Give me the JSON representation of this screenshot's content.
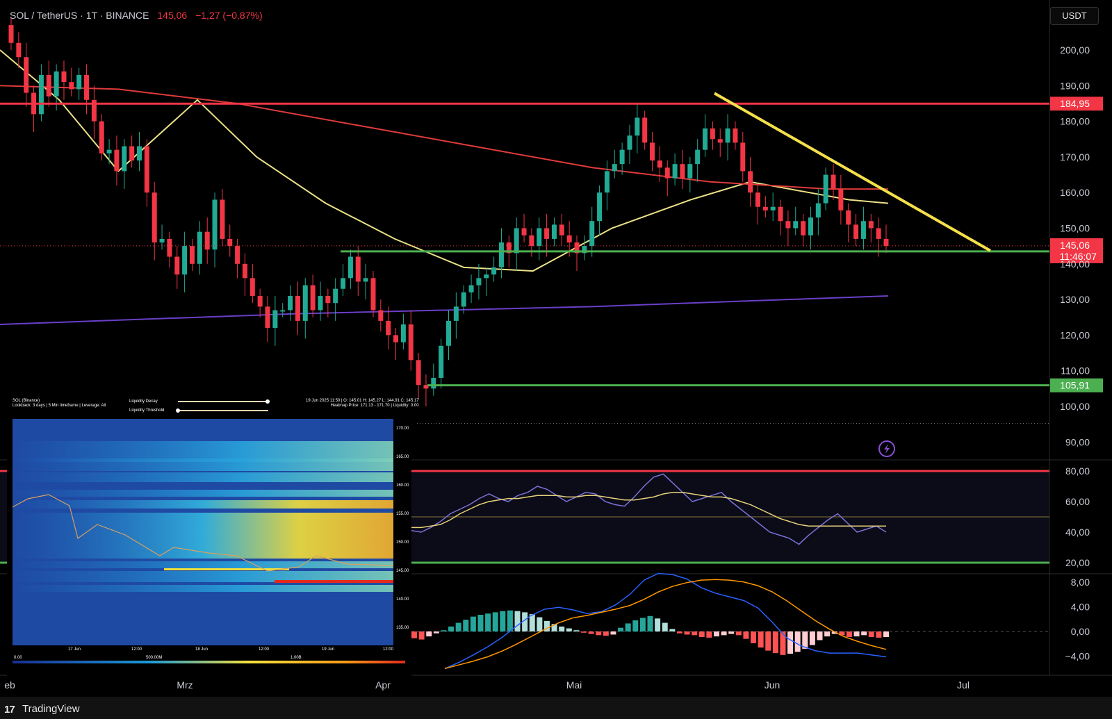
{
  "header": {
    "symbol": "SOL / TetherUS · 1T · BINANCE",
    "last": "145,06",
    "change": "−1,27 (−0,87%)"
  },
  "unit_button": "USDT",
  "footer": {
    "brand": "TradingView",
    "logo_glyph": "17"
  },
  "colors": {
    "up": "#22ab94",
    "down": "#f23645",
    "resistance": "#f23645",
    "support": "#4caf50",
    "trendline": "#f5e04a",
    "ma_slow": "#e03b3b",
    "ma_fast": "#ece287",
    "ma_long": "#6a3fc8"
  },
  "chart_data": {
    "type": "candlestick",
    "ylim": [
      85,
      205
    ],
    "y_ticks": [
      "200,00",
      "190,00",
      "180,00",
      "170,00",
      "160,00",
      "150,00",
      "140,00",
      "130,00",
      "120,00",
      "110,00",
      "100,00",
      "90,00"
    ],
    "x_labels": [
      "eb",
      "Mrz",
      "Apr",
      "Mai",
      "Jun",
      "Jul"
    ],
    "price_labels": {
      "resistance": "184,95",
      "last": "145,06",
      "countdown": "11:46:07",
      "support": "105,91"
    },
    "levels": {
      "resistance": 184.95,
      "support_high": 143.5,
      "support_low": 105.91,
      "last": 145.06,
      "low_dotted": 95.2
    },
    "trendline": {
      "from_price": 187.5,
      "to_price": 144.1
    },
    "candles_close": [
      202,
      198,
      188,
      182,
      193,
      187,
      194,
      191,
      189,
      193,
      186,
      180,
      171,
      172,
      166,
      173,
      169,
      173,
      160,
      146,
      147,
      142,
      137,
      145,
      140,
      149,
      144,
      158,
      147,
      145,
      140,
      136,
      131,
      128,
      122,
      127,
      127,
      131,
      124,
      134,
      127,
      131,
      129,
      133,
      136,
      142,
      135,
      136,
      127,
      124,
      120,
      118,
      123,
      113,
      106,
      105,
      108,
      117,
      124,
      128,
      132,
      134,
      136,
      137,
      139,
      146,
      143,
      150,
      148,
      145,
      150,
      147,
      151,
      148,
      146,
      143,
      145,
      152,
      160,
      166,
      168,
      172,
      176,
      181,
      174,
      169,
      167,
      164,
      168,
      164,
      168,
      172,
      178,
      175,
      174,
      178,
      174,
      166,
      160,
      156,
      155,
      156,
      152,
      150,
      152,
      148,
      153,
      157,
      165,
      161,
      155,
      151,
      147,
      152,
      150,
      147,
      145
    ],
    "ma_fast": [
      [
        0,
        238
      ],
      [
        100,
        198
      ],
      [
        200,
        136
      ],
      [
        270,
        72
      ],
      [
        350,
        40
      ],
      [
        450,
        14
      ],
      [
        600,
        -20
      ],
      [
        680,
        -35
      ]
    ],
    "ma_slow": [
      [
        0,
        190
      ],
      [
        100,
        189
      ],
      [
        200,
        185
      ],
      [
        300,
        175
      ],
      [
        400,
        168
      ],
      [
        500,
        165
      ],
      [
        600,
        162
      ],
      [
        680,
        161
      ]
    ],
    "ma_long": [
      [
        0,
        123
      ],
      [
        200,
        126
      ],
      [
        400,
        127
      ],
      [
        600,
        130
      ],
      [
        680,
        131
      ]
    ],
    "rsi": {
      "ticks": [
        "80,00",
        "60,00",
        "40,00",
        "20,00"
      ],
      "ylim": [
        15,
        85
      ],
      "rsi": [
        41,
        40,
        43,
        47,
        52,
        55,
        58,
        62,
        65,
        62,
        60,
        64,
        66,
        70,
        68,
        64,
        60,
        63,
        66,
        65,
        60,
        58,
        57,
        63,
        70,
        76,
        78,
        72,
        66,
        60,
        62,
        64,
        66,
        60,
        55,
        50,
        45,
        40,
        38,
        36,
        32,
        38,
        43,
        48,
        52,
        46,
        40,
        42,
        44,
        40
      ],
      "signal": [
        43,
        43,
        44,
        45,
        48,
        52,
        55,
        58,
        60,
        61,
        62,
        62,
        63,
        64,
        64,
        64,
        63,
        63,
        64,
        64,
        63,
        62,
        61,
        61,
        62,
        63,
        65,
        66,
        66,
        65,
        64,
        63,
        63,
        62,
        60,
        58,
        55,
        52,
        49,
        47,
        45,
        44,
        44,
        44,
        44,
        44,
        44,
        44,
        44,
        44
      ]
    },
    "macd": {
      "ticks": [
        "8,00",
        "4,00",
        "0,00",
        "−4,00"
      ],
      "ylim": [
        -6.5,
        9.5
      ],
      "hist": [
        -1.1,
        -1.3,
        -0.8,
        -0.3,
        0.2,
        0.8,
        1.4,
        1.9,
        2.4,
        2.7,
        2.9,
        3.1,
        3.3,
        3.4,
        3.3,
        3.1,
        2.8,
        2.3,
        1.7,
        1.2,
        0.8,
        0.5,
        0.2,
        -0.2,
        -0.4,
        -0.6,
        -0.7,
        -0.5,
        0.6,
        1.3,
        1.8,
        2.2,
        2.5,
        2.1,
        1.4,
        0.4,
        -0.3,
        -0.5,
        -0.6,
        -0.9,
        -1.0,
        -0.8,
        -0.6,
        -0.4,
        -0.6,
        -1.2,
        -1.9,
        -2.6,
        -3.1,
        -3.5,
        -3.8,
        -3.6,
        -3.3,
        -2.8,
        -2.2,
        -1.4,
        -0.8,
        -0.4,
        -0.6,
        -0.9,
        -0.8,
        -0.6,
        -0.9,
        -1.0,
        -0.9
      ],
      "macd_line": [
        -6,
        -5,
        -3.8,
        -2.5,
        -1,
        0.8,
        2.5,
        3.6,
        3.9,
        3.5,
        2.9,
        3.2,
        4.3,
        6,
        8.3,
        9.4,
        9.2,
        8.5,
        7.1,
        6.2,
        5.6,
        5,
        3.8,
        1.5,
        -1,
        -2.3,
        -3.1,
        -3.5,
        -3.5,
        -3.5,
        -3.8,
        -4.1
      ],
      "signal_line": [
        -6,
        -5.4,
        -4.8,
        -4.1,
        -3.2,
        -2.1,
        -0.9,
        0.3,
        1.4,
        2.2,
        2.6,
        3.1,
        3.6,
        4.2,
        5.2,
        6.4,
        7.3,
        7.9,
        8.3,
        8.4,
        8.3,
        8.0,
        7.4,
        6.4,
        5,
        3.4,
        1.8,
        0.4,
        -0.8,
        -1.6,
        -2.3,
        -2.9
      ]
    }
  },
  "inset": {
    "title_lines": [
      "SOL (Binance)",
      "Lookback: 3 days | 5 Min timeframe | Leverage: All"
    ],
    "slider_labels": [
      "Liquidity Decay",
      "Liquidity Threshold"
    ],
    "info_lines": [
      "19 Jun 2025 11:50 | O: 145.01 H: 145.27 L: 144.91 C: 145.17",
      "Heatmap Price: 171.13 - 171.70 | Liquidity: 0.00"
    ],
    "y_ticks": [
      "170.00",
      "165.00",
      "160.00",
      "155.00",
      "150.00",
      "145.00",
      "140.00",
      "135.00"
    ],
    "x_ticks": [
      "17 Jun",
      "12:00",
      "18 Jun",
      "12:00",
      "19 Jun",
      "12:00"
    ],
    "scale_labels": [
      "0.00",
      "500.00M",
      "1.00B"
    ]
  }
}
